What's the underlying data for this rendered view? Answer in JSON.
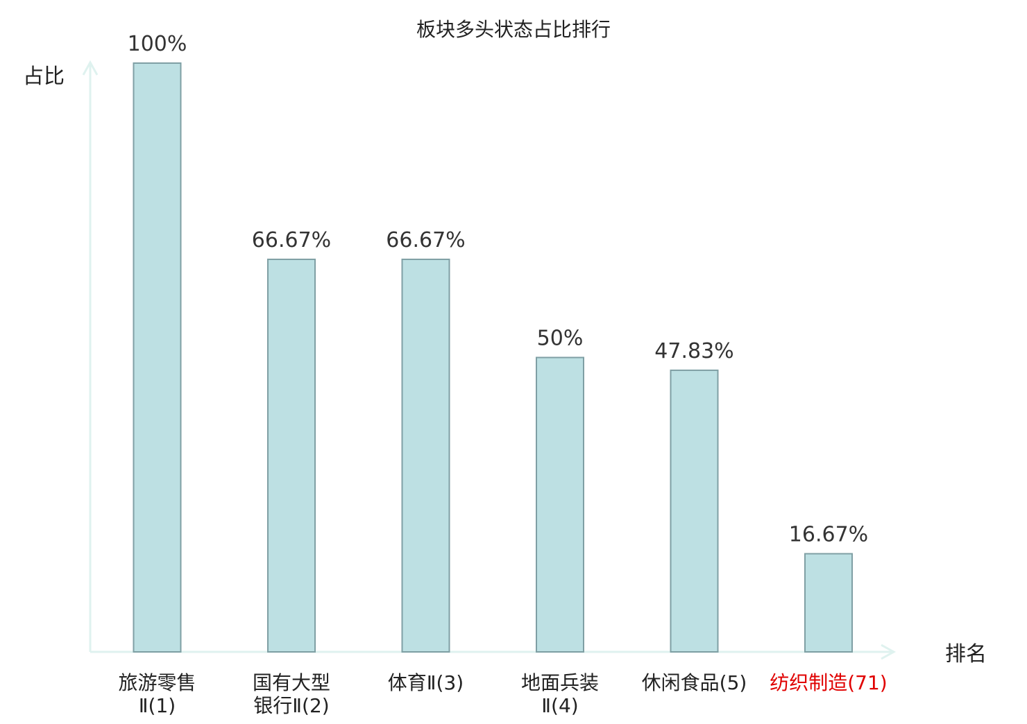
{
  "chart_data": {
    "type": "bar",
    "title": "板块多头状态占比排行",
    "ylabel": "占比",
    "xlabel": "排名",
    "ylim": [
      0,
      100
    ],
    "grid": false,
    "categories": [
      {
        "name_lines": [
          "旅游零售",
          "Ⅱ(1)"
        ],
        "name_parts": [],
        "highlight": false
      },
      {
        "name_lines": [
          "国有大型",
          "银行Ⅱ(2)"
        ],
        "name_parts": [],
        "highlight": false
      },
      {
        "name_lines": [
          "体育Ⅱ(3)"
        ],
        "name_parts": [],
        "highlight": false
      },
      {
        "name_lines": [
          "地面兵装",
          "Ⅱ(4)"
        ],
        "name_parts": [],
        "highlight": false
      },
      {
        "name_lines": [
          "休闲食品(5)"
        ],
        "name_parts": [],
        "highlight": false
      },
      {
        "name_lines": [
          "纺织制造(71)"
        ],
        "name_parts": [],
        "highlight": true
      }
    ],
    "values": [
      100,
      66.67,
      66.67,
      50,
      47.83,
      16.67
    ],
    "value_labels": [
      "100%",
      "66.67%",
      "66.67%",
      "50%",
      "47.83%",
      "16.67%"
    ]
  },
  "colors": {
    "bar_fill": "#bde0e3",
    "bar_stroke": "#7f9fa4",
    "axis": "#dff2ef",
    "text": "#222222",
    "value_text": "#333333",
    "highlight_text": "#e00000"
  }
}
